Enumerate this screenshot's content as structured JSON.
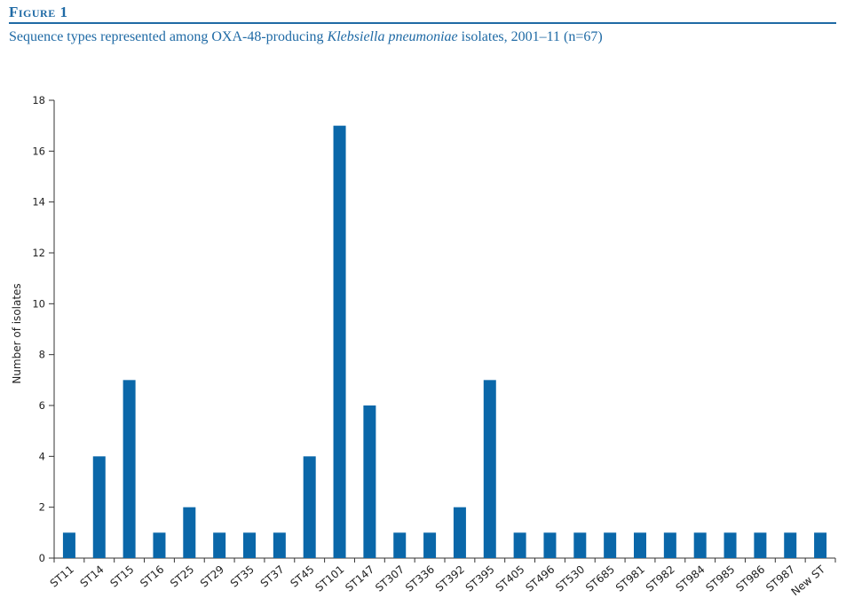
{
  "figure": {
    "label": "Figure 1",
    "caption_before": "Sequence types represented among OXA-48-producing ",
    "caption_italic": "Klebsiella pneumoniae",
    "caption_after": " isolates, 2001–11 (n=67)"
  },
  "colors": {
    "accent": "#1f6aa5",
    "bar": "#0a67a9",
    "axis": "#333333"
  },
  "chart_data": {
    "type": "bar",
    "title": "",
    "xlabel": "",
    "ylabel": "Number of isolates",
    "ylim": [
      0,
      18
    ],
    "yticks": [
      0,
      2,
      4,
      6,
      8,
      10,
      12,
      14,
      16,
      18
    ],
    "grid": false,
    "legend": "none",
    "categories": [
      "ST11",
      "ST14",
      "ST15",
      "ST16",
      "ST25",
      "ST29",
      "ST35",
      "ST37",
      "ST45",
      "ST101",
      "ST147",
      "ST307",
      "ST336",
      "ST392",
      "ST395",
      "ST405",
      "ST496",
      "ST530",
      "ST685",
      "ST981",
      "ST982",
      "ST984",
      "ST985",
      "ST986",
      "ST987",
      "New ST"
    ],
    "values": [
      1,
      4,
      7,
      1,
      2,
      1,
      1,
      1,
      4,
      17,
      6,
      1,
      1,
      2,
      7,
      1,
      1,
      1,
      1,
      1,
      1,
      1,
      1,
      1,
      1,
      1
    ]
  }
}
